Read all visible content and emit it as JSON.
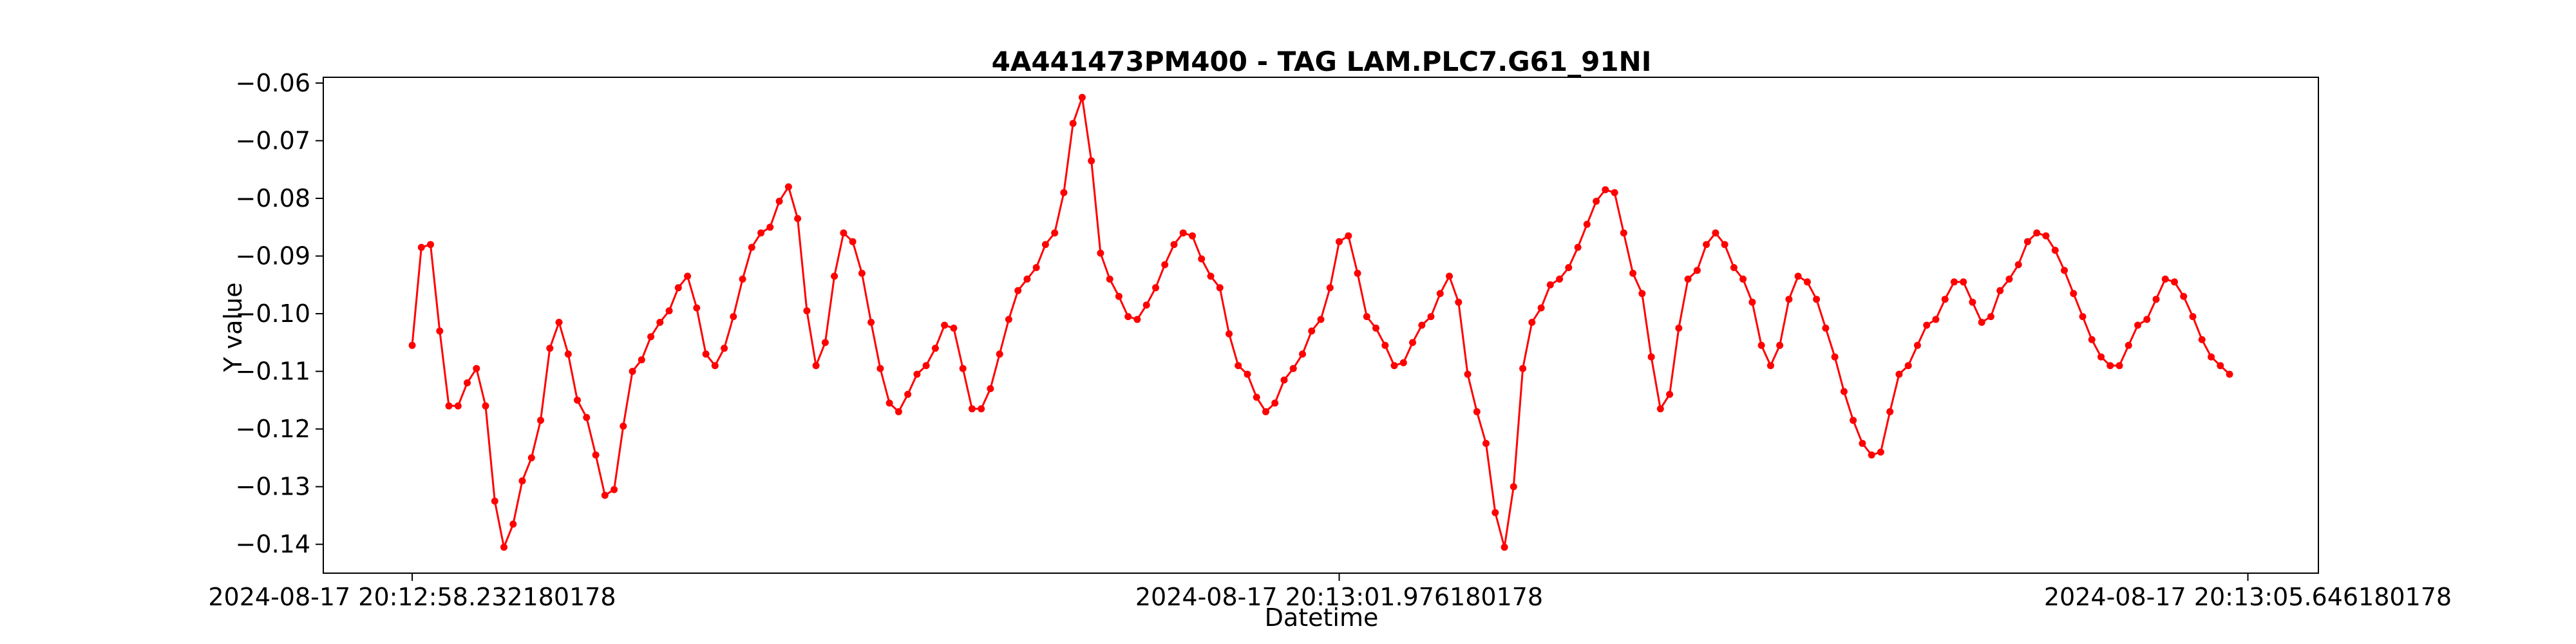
{
  "chart_data": {
    "type": "line",
    "title": "4A441473PM400 - TAG LAM.PLC7.G61_91NI",
    "xlabel": "Datetime",
    "ylabel": "Y value",
    "ylim": [
      -0.145,
      -0.059
    ],
    "yticks": [
      -0.14,
      -0.13,
      -0.12,
      -0.11,
      -0.1,
      -0.09,
      -0.08,
      -0.07,
      -0.06
    ],
    "ytick_labels": [
      "−0.14",
      "−0.13",
      "−0.12",
      "−0.11",
      "−0.10",
      "−0.09",
      "−0.08",
      "−0.07",
      "−0.06"
    ],
    "xticks": [
      {
        "index": 0,
        "label": "2024-08-17 20:12:58.232180178"
      },
      {
        "index": 101,
        "label": "2024-08-17 20:13:01.976180178"
      },
      {
        "index": 200,
        "label": "2024-08-17 20:13:05.646180178"
      }
    ],
    "grid": false,
    "color": "#ff0000",
    "marker": "circle",
    "series": [
      {
        "values": [
          -0.1055,
          -0.0885,
          -0.088,
          -0.103,
          -0.116,
          -0.116,
          -0.112,
          -0.1095,
          -0.116,
          -0.1325,
          -0.1405,
          -0.1365,
          -0.129,
          -0.125,
          -0.1185,
          -0.106,
          -0.1015,
          -0.107,
          -0.115,
          -0.118,
          -0.1245,
          -0.1315,
          -0.1305,
          -0.1195,
          -0.11,
          -0.108,
          -0.104,
          -0.1015,
          -0.0995,
          -0.0955,
          -0.0935,
          -0.099,
          -0.107,
          -0.109,
          -0.106,
          -0.1005,
          -0.094,
          -0.0885,
          -0.086,
          -0.085,
          -0.0805,
          -0.078,
          -0.0835,
          -0.0995,
          -0.109,
          -0.105,
          -0.0935,
          -0.086,
          -0.0875,
          -0.093,
          -0.1015,
          -0.1095,
          -0.1155,
          -0.117,
          -0.114,
          -0.1105,
          -0.109,
          -0.106,
          -0.102,
          -0.1025,
          -0.1095,
          -0.1165,
          -0.1165,
          -0.113,
          -0.107,
          -0.101,
          -0.096,
          -0.094,
          -0.092,
          -0.088,
          -0.086,
          -0.079,
          -0.067,
          -0.0625,
          -0.0735,
          -0.0895,
          -0.094,
          -0.097,
          -0.1005,
          -0.101,
          -0.0985,
          -0.0955,
          -0.0915,
          -0.088,
          -0.086,
          -0.0865,
          -0.0905,
          -0.0935,
          -0.0955,
          -0.1035,
          -0.109,
          -0.1105,
          -0.1145,
          -0.117,
          -0.1155,
          -0.1115,
          -0.1095,
          -0.107,
          -0.103,
          -0.101,
          -0.0955,
          -0.0875,
          -0.0865,
          -0.093,
          -0.1005,
          -0.1025,
          -0.1055,
          -0.109,
          -0.1085,
          -0.105,
          -0.102,
          -0.1005,
          -0.0965,
          -0.0935,
          -0.098,
          -0.1105,
          -0.117,
          -0.1225,
          -0.1345,
          -0.1405,
          -0.13,
          -0.1095,
          -0.1015,
          -0.099,
          -0.095,
          -0.094,
          -0.092,
          -0.0885,
          -0.0845,
          -0.0805,
          -0.0785,
          -0.079,
          -0.086,
          -0.093,
          -0.0965,
          -0.1075,
          -0.1165,
          -0.114,
          -0.1025,
          -0.094,
          -0.0925,
          -0.088,
          -0.086,
          -0.088,
          -0.092,
          -0.094,
          -0.098,
          -0.1055,
          -0.109,
          -0.1055,
          -0.0975,
          -0.0935,
          -0.0945,
          -0.0975,
          -0.1025,
          -0.1075,
          -0.1135,
          -0.1185,
          -0.1225,
          -0.1245,
          -0.124,
          -0.117,
          -0.1105,
          -0.109,
          -0.1055,
          -0.102,
          -0.101,
          -0.0975,
          -0.0945,
          -0.0945,
          -0.098,
          -0.1015,
          -0.1005,
          -0.096,
          -0.094,
          -0.0915,
          -0.0875,
          -0.086,
          -0.0865,
          -0.089,
          -0.0925,
          -0.0965,
          -0.1005,
          -0.1045,
          -0.1075,
          -0.109,
          -0.109,
          -0.1055,
          -0.102,
          -0.101,
          -0.0975,
          -0.094,
          -0.0945,
          -0.097,
          -0.1005,
          -0.1045,
          -0.1075,
          -0.109,
          -0.1105
        ]
      }
    ]
  }
}
